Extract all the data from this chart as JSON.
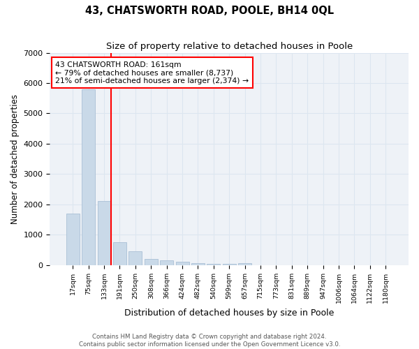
{
  "title": "43, CHATSWORTH ROAD, POOLE, BH14 0QL",
  "subtitle": "Size of property relative to detached houses in Poole",
  "xlabel": "Distribution of detached houses by size in Poole",
  "ylabel": "Number of detached properties",
  "categories": [
    "17sqm",
    "75sqm",
    "133sqm",
    "191sqm",
    "250sqm",
    "308sqm",
    "366sqm",
    "424sqm",
    "482sqm",
    "540sqm",
    "599sqm",
    "657sqm",
    "715sqm",
    "773sqm",
    "831sqm",
    "889sqm",
    "947sqm",
    "1006sqm",
    "1064sqm",
    "1122sqm",
    "1180sqm"
  ],
  "values": [
    1700,
    5800,
    2100,
    750,
    450,
    200,
    150,
    100,
    60,
    50,
    50,
    70,
    0,
    0,
    0,
    0,
    0,
    0,
    0,
    0,
    0
  ],
  "bar_color": "#c9d9e8",
  "bar_edgecolor": "#a0b8d0",
  "redline_index": 2,
  "annotation_line1": "43 CHATSWORTH ROAD: 161sqm",
  "annotation_line2": "← 79% of detached houses are smaller (8,737)",
  "annotation_line3": "21% of semi-detached houses are larger (2,374) →",
  "ylim": [
    0,
    7000
  ],
  "yticks": [
    0,
    1000,
    2000,
    3000,
    4000,
    5000,
    6000,
    7000
  ],
  "grid_color": "#dce6f0",
  "background_color": "#eef2f7",
  "footer_line1": "Contains HM Land Registry data © Crown copyright and database right 2024.",
  "footer_line2": "Contains public sector information licensed under the Open Government Licence v3.0."
}
